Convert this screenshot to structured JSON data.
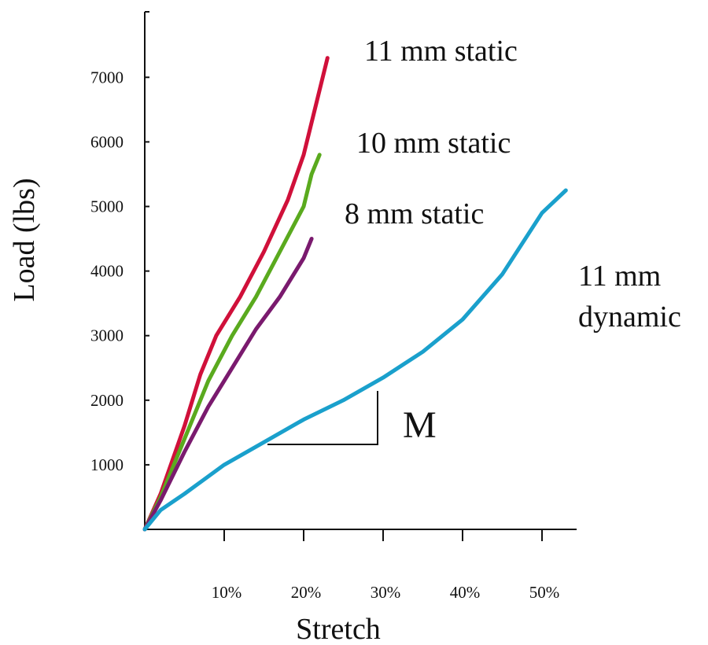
{
  "chart_data": {
    "type": "line",
    "xlabel": "Stretch",
    "ylabel": "Load (lbs)",
    "xlim": [
      0,
      54
    ],
    "ylim": [
      0,
      8000
    ],
    "x_ticks": [
      {
        "value": 10,
        "label": "10%"
      },
      {
        "value": 20,
        "label": "20%"
      },
      {
        "value": 30,
        "label": "30%"
      },
      {
        "value": 40,
        "label": "40%"
      },
      {
        "value": 50,
        "label": "50%"
      }
    ],
    "y_ticks": [
      {
        "value": 1000,
        "label": "1000"
      },
      {
        "value": 2000,
        "label": "2000"
      },
      {
        "value": 3000,
        "label": "3000"
      },
      {
        "value": 4000,
        "label": "4000"
      },
      {
        "value": 5000,
        "label": "5000"
      },
      {
        "value": 6000,
        "label": "6000"
      },
      {
        "value": 7000,
        "label": "7000"
      }
    ],
    "series": [
      {
        "label_lines": [
          "11 mm static"
        ],
        "color": "#d0103a",
        "points": [
          [
            0,
            0
          ],
          [
            2,
            550
          ],
          [
            5,
            1600
          ],
          [
            7,
            2400
          ],
          [
            9,
            3000
          ],
          [
            12,
            3600
          ],
          [
            15,
            4300
          ],
          [
            18,
            5100
          ],
          [
            20,
            5800
          ],
          [
            22,
            6800
          ],
          [
            23,
            7300
          ]
        ]
      },
      {
        "label_lines": [
          "10 mm static"
        ],
        "color": "#5aaa1e",
        "points": [
          [
            0,
            0
          ],
          [
            2,
            500
          ],
          [
            5,
            1400
          ],
          [
            8,
            2300
          ],
          [
            11,
            3000
          ],
          [
            14,
            3600
          ],
          [
            17,
            4300
          ],
          [
            20,
            5000
          ],
          [
            21,
            5500
          ],
          [
            22,
            5800
          ]
        ]
      },
      {
        "label_lines": [
          "8 mm static"
        ],
        "color": "#7a1a6e",
        "points": [
          [
            0,
            0
          ],
          [
            2,
            450
          ],
          [
            5,
            1200
          ],
          [
            8,
            1900
          ],
          [
            11,
            2500
          ],
          [
            14,
            3100
          ],
          [
            17,
            3600
          ],
          [
            20,
            4200
          ],
          [
            21,
            4500
          ]
        ]
      },
      {
        "label_lines": [
          "11 mm",
          "dynamic"
        ],
        "color": "#1aa0cc",
        "points": [
          [
            0,
            0
          ],
          [
            2,
            300
          ],
          [
            5,
            550
          ],
          [
            10,
            1000
          ],
          [
            15,
            1350
          ],
          [
            20,
            1700
          ],
          [
            25,
            2000
          ],
          [
            30,
            2350
          ],
          [
            35,
            2750
          ],
          [
            40,
            3250
          ],
          [
            45,
            3950
          ],
          [
            50,
            4900
          ],
          [
            53,
            5250
          ]
        ]
      }
    ],
    "annotation": {
      "label": "M"
    }
  }
}
